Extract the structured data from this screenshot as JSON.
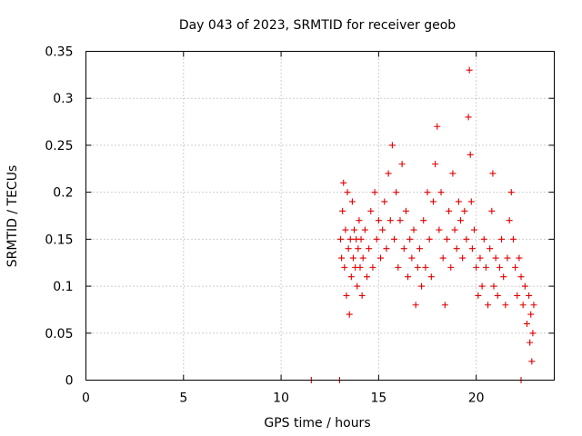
{
  "chart_data": {
    "type": "scatter",
    "title": "Day 043 of 2023, SRMTID for receiver geob",
    "xlabel": "GPS time / hours",
    "ylabel": "SRMTID / TECUs",
    "xlim": [
      0,
      24
    ],
    "ylim": [
      0,
      0.35
    ],
    "x_ticks": [
      0,
      5,
      10,
      15,
      20
    ],
    "x_tick_labels": [
      "0",
      "5",
      "10",
      "15",
      "20"
    ],
    "y_ticks": [
      0,
      0.05,
      0.1,
      0.15,
      0.2,
      0.25,
      0.3,
      0.35
    ],
    "y_tick_labels": [
      "0",
      "0.05",
      "0.1",
      "0.15",
      "0.2",
      "0.25",
      "0.3",
      "0.35"
    ],
    "grid": true,
    "marker": "plus",
    "color": "#e00000",
    "series": [
      {
        "name": "SRMTID",
        "points": [
          [
            11.55,
            0.0
          ],
          [
            13.0,
            0.0
          ],
          [
            22.3,
            0.0
          ],
          [
            13.05,
            0.15
          ],
          [
            13.1,
            0.13
          ],
          [
            13.15,
            0.18
          ],
          [
            13.2,
            0.21
          ],
          [
            13.25,
            0.12
          ],
          [
            13.3,
            0.16
          ],
          [
            13.35,
            0.09
          ],
          [
            13.4,
            0.2
          ],
          [
            13.45,
            0.14
          ],
          [
            13.5,
            0.07
          ],
          [
            13.55,
            0.15
          ],
          [
            13.6,
            0.11
          ],
          [
            13.65,
            0.19
          ],
          [
            13.7,
            0.13
          ],
          [
            13.75,
            0.16
          ],
          [
            13.8,
            0.12
          ],
          [
            13.85,
            0.15
          ],
          [
            13.9,
            0.1
          ],
          [
            13.95,
            0.14
          ],
          [
            14.0,
            0.17
          ],
          [
            14.05,
            0.12
          ],
          [
            14.1,
            0.15
          ],
          [
            14.15,
            0.09
          ],
          [
            14.2,
            0.13
          ],
          [
            14.3,
            0.16
          ],
          [
            14.4,
            0.11
          ],
          [
            14.5,
            0.14
          ],
          [
            14.6,
            0.18
          ],
          [
            14.7,
            0.12
          ],
          [
            14.8,
            0.2
          ],
          [
            14.9,
            0.15
          ],
          [
            15.0,
            0.17
          ],
          [
            15.1,
            0.13
          ],
          [
            15.2,
            0.16
          ],
          [
            15.3,
            0.19
          ],
          [
            15.4,
            0.14
          ],
          [
            15.5,
            0.22
          ],
          [
            15.6,
            0.17
          ],
          [
            15.7,
            0.25
          ],
          [
            15.8,
            0.15
          ],
          [
            15.9,
            0.2
          ],
          [
            16.0,
            0.12
          ],
          [
            16.1,
            0.17
          ],
          [
            16.2,
            0.23
          ],
          [
            16.3,
            0.14
          ],
          [
            16.4,
            0.18
          ],
          [
            16.5,
            0.11
          ],
          [
            16.6,
            0.15
          ],
          [
            16.7,
            0.13
          ],
          [
            16.8,
            0.16
          ],
          [
            16.9,
            0.08
          ],
          [
            17.0,
            0.12
          ],
          [
            17.1,
            0.14
          ],
          [
            17.2,
            0.1
          ],
          [
            17.3,
            0.17
          ],
          [
            17.4,
            0.12
          ],
          [
            17.5,
            0.2
          ],
          [
            17.6,
            0.15
          ],
          [
            17.7,
            0.11
          ],
          [
            17.8,
            0.19
          ],
          [
            17.9,
            0.23
          ],
          [
            18.0,
            0.27
          ],
          [
            18.1,
            0.16
          ],
          [
            18.2,
            0.2
          ],
          [
            18.3,
            0.13
          ],
          [
            18.4,
            0.08
          ],
          [
            18.5,
            0.15
          ],
          [
            18.6,
            0.18
          ],
          [
            18.7,
            0.12
          ],
          [
            18.8,
            0.22
          ],
          [
            18.9,
            0.16
          ],
          [
            19.0,
            0.14
          ],
          [
            19.1,
            0.19
          ],
          [
            19.2,
            0.17
          ],
          [
            19.3,
            0.13
          ],
          [
            19.4,
            0.18
          ],
          [
            19.5,
            0.15
          ],
          [
            19.6,
            0.28
          ],
          [
            19.65,
            0.33
          ],
          [
            19.7,
            0.24
          ],
          [
            19.75,
            0.19
          ],
          [
            19.8,
            0.14
          ],
          [
            19.9,
            0.16
          ],
          [
            20.0,
            0.12
          ],
          [
            20.1,
            0.09
          ],
          [
            20.2,
            0.13
          ],
          [
            20.3,
            0.1
          ],
          [
            20.4,
            0.15
          ],
          [
            20.5,
            0.12
          ],
          [
            20.6,
            0.08
          ],
          [
            20.7,
            0.14
          ],
          [
            20.8,
            0.18
          ],
          [
            20.85,
            0.22
          ],
          [
            20.9,
            0.1
          ],
          [
            21.0,
            0.13
          ],
          [
            21.1,
            0.09
          ],
          [
            21.2,
            0.12
          ],
          [
            21.3,
            0.15
          ],
          [
            21.4,
            0.11
          ],
          [
            21.5,
            0.08
          ],
          [
            21.6,
            0.13
          ],
          [
            21.7,
            0.17
          ],
          [
            21.8,
            0.2
          ],
          [
            21.9,
            0.15
          ],
          [
            22.0,
            0.12
          ],
          [
            22.1,
            0.09
          ],
          [
            22.2,
            0.13
          ],
          [
            22.3,
            0.11
          ],
          [
            22.4,
            0.08
          ],
          [
            22.5,
            0.1
          ],
          [
            22.6,
            0.06
          ],
          [
            22.7,
            0.09
          ],
          [
            22.75,
            0.04
          ],
          [
            22.8,
            0.07
          ],
          [
            22.85,
            0.02
          ],
          [
            22.9,
            0.05
          ],
          [
            22.95,
            0.08
          ]
        ]
      }
    ]
  }
}
